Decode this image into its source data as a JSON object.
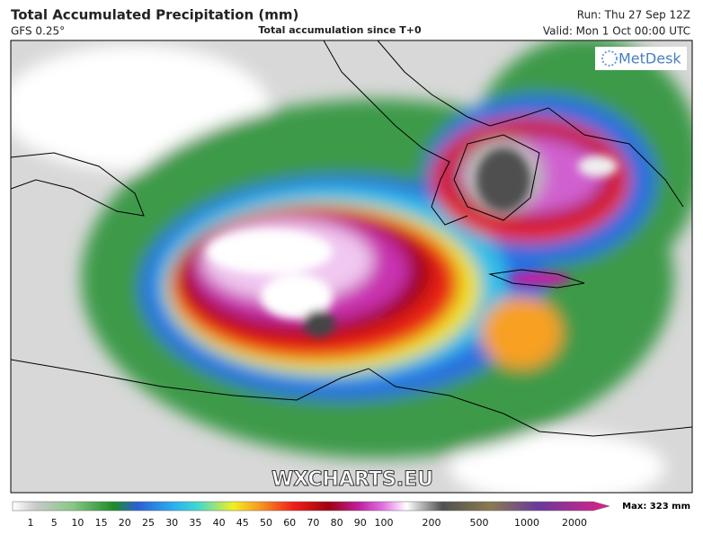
{
  "header": {
    "title": "Total Accumulated Precipitation (mm)",
    "model": "GFS 0.25°",
    "subtitle": "Total accumulation since T+0",
    "run": "Run: Thu 27 Sep 12Z",
    "valid": "Valid: Mon 1 Oct 00:00 UTC"
  },
  "map": {
    "logo": "MetDesk",
    "watermark": "WXCHARTS.EU"
  },
  "legend": {
    "labels": [
      "1",
      "5",
      "10",
      "15",
      "20",
      "25",
      "30",
      "35",
      "40",
      "45",
      "50",
      "60",
      "70",
      "80",
      "90",
      "100",
      "200",
      "500",
      "1000",
      "2000"
    ],
    "max": "Max: 323 mm"
  }
}
